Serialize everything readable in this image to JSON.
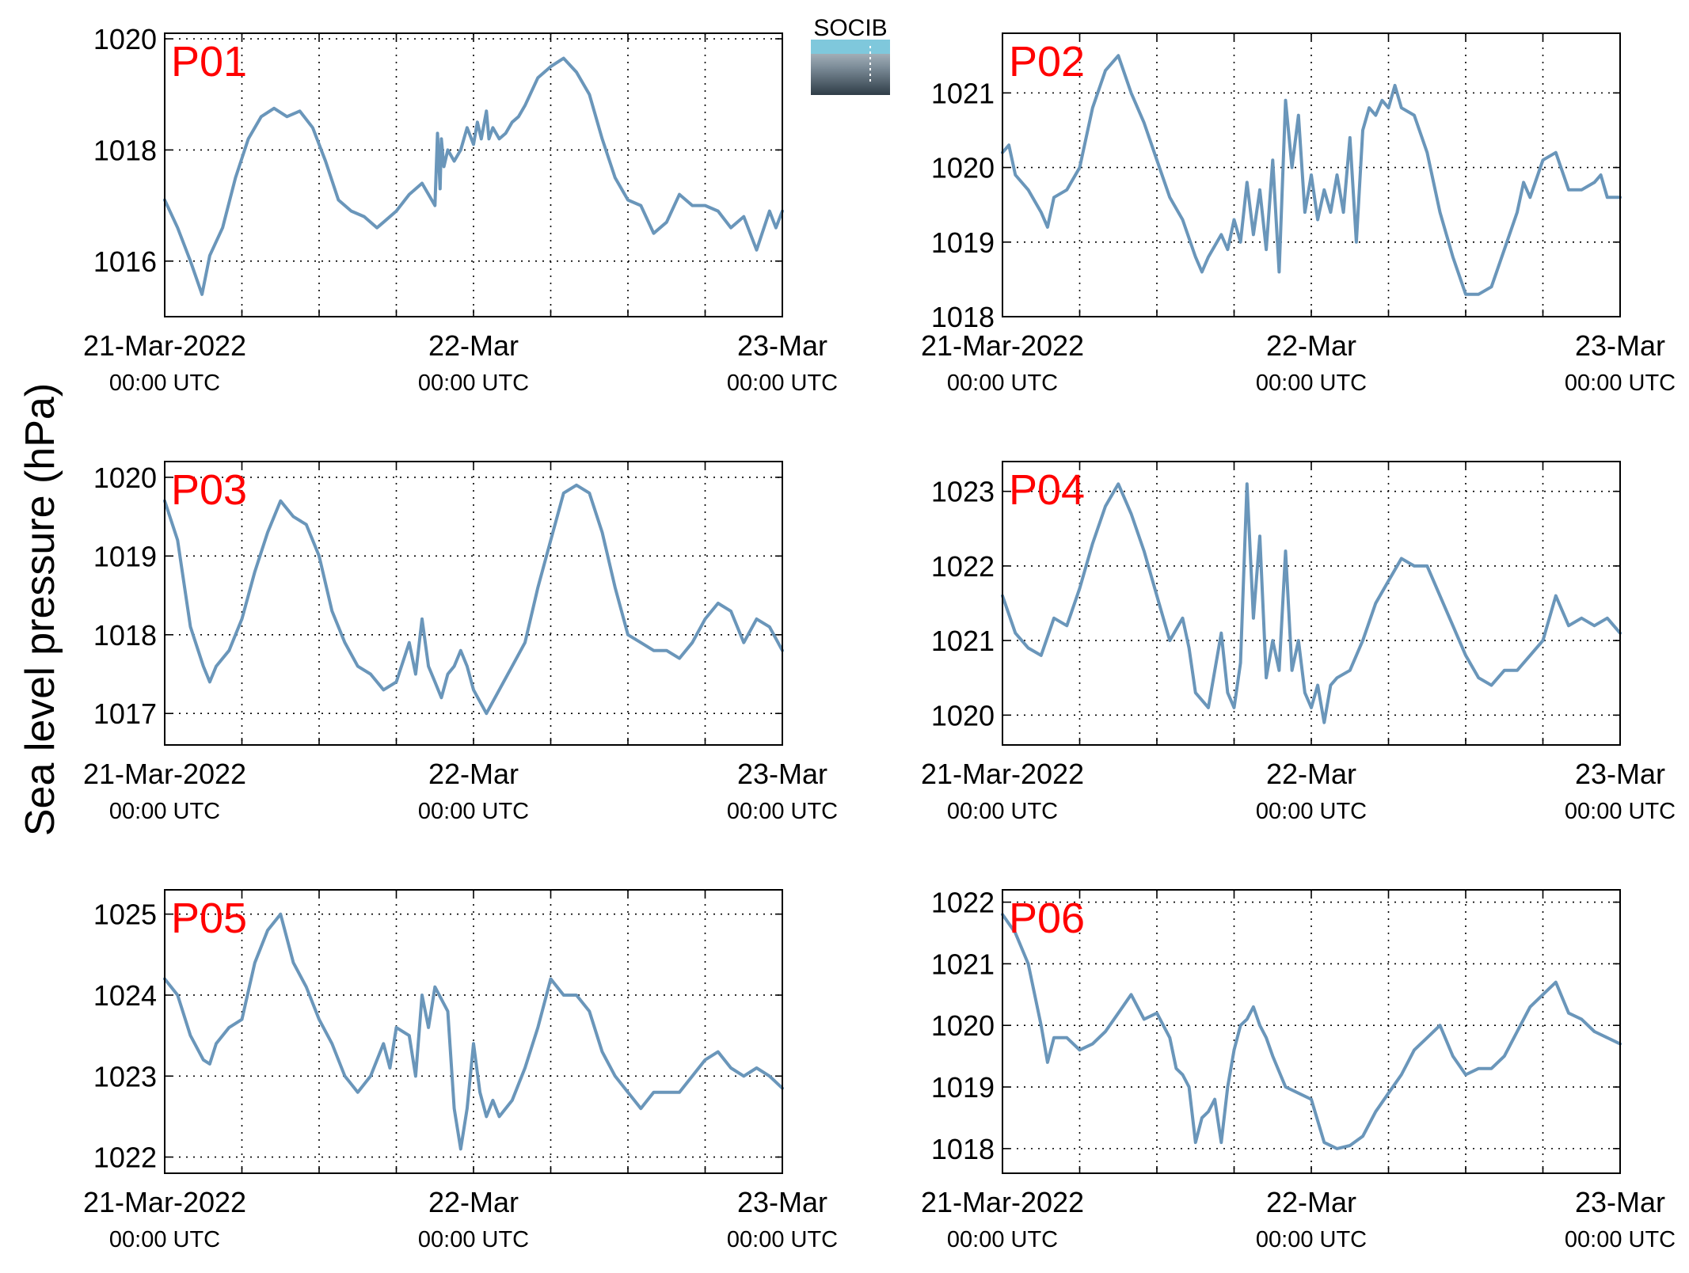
{
  "figure": {
    "ylabel": "Sea level pressure (hPa)",
    "logo_text": "SOCIB",
    "line_color": "#6a96ba",
    "label_color": "#ff0000",
    "x_tick_labels": [
      {
        "date": "21-Mar-2022",
        "time": "00:00 UTC"
      },
      {
        "date": "22-Mar",
        "time": "00:00 UTC"
      },
      {
        "date": "23-Mar",
        "time": "00:00 UTC"
      }
    ]
  },
  "chart_data": [
    {
      "type": "line",
      "label": "P01",
      "xlim": [
        0,
        48
      ],
      "ylim": [
        1015,
        1020.1
      ],
      "yticks": [
        "1016",
        "1018",
        "1020"
      ],
      "grid": true,
      "x_unit": "hours since 21-Mar-2022 00:00 UTC",
      "x": [
        0,
        1,
        2,
        2.9,
        3.5,
        4.5,
        5.5,
        6.5,
        7.5,
        8.5,
        9.5,
        10.5,
        11.5,
        12.5,
        13.5,
        14.5,
        15.5,
        16.5,
        17,
        18,
        19,
        20,
        21,
        21.2,
        21.4,
        21.5,
        21.7,
        22,
        22.5,
        23,
        23.5,
        24,
        24.3,
        24.6,
        25,
        25.2,
        25.5,
        26,
        26.5,
        27,
        27.5,
        28,
        29,
        30,
        31,
        32,
        33,
        34,
        35,
        36,
        37,
        38,
        39,
        40,
        41,
        42,
        43,
        44,
        45,
        46,
        47,
        47.5,
        48
      ],
      "y": [
        1017.1,
        1016.6,
        1016.0,
        1015.4,
        1016.1,
        1016.6,
        1017.5,
        1018.2,
        1018.6,
        1018.75,
        1018.6,
        1018.7,
        1018.4,
        1017.8,
        1017.1,
        1016.9,
        1016.8,
        1016.6,
        1016.7,
        1016.9,
        1017.2,
        1017.4,
        1017.0,
        1018.3,
        1017.3,
        1018.2,
        1017.7,
        1018.0,
        1017.8,
        1018.0,
        1018.4,
        1018.1,
        1018.5,
        1018.2,
        1018.7,
        1018.2,
        1018.4,
        1018.2,
        1018.3,
        1018.5,
        1018.6,
        1018.8,
        1019.3,
        1019.5,
        1019.65,
        1019.4,
        1019.0,
        1018.2,
        1017.5,
        1017.1,
        1017.0,
        1016.5,
        1016.7,
        1017.2,
        1017.0,
        1017.0,
        1016.9,
        1016.6,
        1016.8,
        1016.2,
        1016.9,
        1016.6,
        1016.9
      ]
    },
    {
      "type": "line",
      "label": "P02",
      "xlim": [
        0,
        48
      ],
      "ylim": [
        1018,
        1021.8
      ],
      "yticks": [
        "1018",
        "1019",
        "1020",
        "1021"
      ],
      "grid": true,
      "x_unit": "hours since 21-Mar-2022 00:00 UTC",
      "x": [
        0,
        0.5,
        1,
        2,
        3,
        3.5,
        4,
        5,
        6,
        7,
        8,
        9,
        10,
        11,
        12,
        13,
        14,
        15,
        15.5,
        16,
        17,
        17.5,
        18,
        18.5,
        19,
        19.5,
        20,
        20.5,
        21,
        21.5,
        22,
        22.5,
        23,
        23.5,
        24,
        24.5,
        25,
        25.5,
        26,
        26.5,
        27,
        27.5,
        28,
        28.5,
        29,
        29.5,
        30,
        30.5,
        31,
        32,
        33,
        33.5,
        34,
        35,
        36,
        37,
        38,
        39,
        40,
        40.5,
        41,
        42,
        43,
        44,
        45,
        46,
        46.5,
        47,
        48
      ],
      "y": [
        1020.2,
        1020.3,
        1019.9,
        1019.7,
        1019.4,
        1019.2,
        1019.6,
        1019.7,
        1020.0,
        1020.8,
        1021.3,
        1021.5,
        1021.0,
        1020.6,
        1020.1,
        1019.6,
        1019.3,
        1018.8,
        1018.6,
        1018.8,
        1019.1,
        1018.9,
        1019.3,
        1019.0,
        1019.8,
        1019.1,
        1019.7,
        1018.9,
        1020.1,
        1018.6,
        1020.9,
        1020.0,
        1020.7,
        1019.4,
        1019.9,
        1019.3,
        1019.7,
        1019.4,
        1019.9,
        1019.4,
        1020.4,
        1019.0,
        1020.5,
        1020.8,
        1020.7,
        1020.9,
        1020.8,
        1021.1,
        1020.8,
        1020.7,
        1020.2,
        1019.8,
        1019.4,
        1018.8,
        1018.3,
        1018.3,
        1018.4,
        1018.9,
        1019.4,
        1019.8,
        1019.6,
        1020.1,
        1020.2,
        1019.7,
        1019.7,
        1019.8,
        1019.9,
        1019.6,
        1019.6
      ]
    },
    {
      "type": "line",
      "label": "P03",
      "xlim": [
        0,
        48
      ],
      "ylim": [
        1016.6,
        1020.2
      ],
      "yticks": [
        "1017",
        "1018",
        "1019",
        "1020"
      ],
      "grid": true,
      "x_unit": "hours since 21-Mar-2022 00:00 UTC",
      "x": [
        0,
        1,
        2,
        3,
        3.5,
        4,
        5,
        5.5,
        6,
        7,
        8,
        9,
        10,
        11,
        12,
        13,
        14,
        15,
        16,
        17,
        18,
        19,
        19.5,
        20,
        20.5,
        21,
        21.5,
        22,
        22.5,
        23,
        23.5,
        24,
        25,
        26,
        27,
        28,
        29,
        30,
        31,
        32,
        33,
        34,
        35,
        36,
        37,
        38,
        39,
        40,
        41,
        42,
        43,
        44,
        45,
        46,
        47,
        48
      ],
      "y": [
        1019.7,
        1019.2,
        1018.1,
        1017.6,
        1017.4,
        1017.6,
        1017.8,
        1018.0,
        1018.2,
        1018.8,
        1019.3,
        1019.7,
        1019.5,
        1019.4,
        1019.0,
        1018.3,
        1017.9,
        1017.6,
        1017.5,
        1017.3,
        1017.4,
        1017.9,
        1017.5,
        1018.2,
        1017.6,
        1017.4,
        1017.2,
        1017.5,
        1017.6,
        1017.8,
        1017.6,
        1017.3,
        1017.0,
        1017.3,
        1017.6,
        1017.9,
        1018.6,
        1019.2,
        1019.8,
        1019.9,
        1019.8,
        1019.3,
        1018.6,
        1018.0,
        1017.9,
        1017.8,
        1017.8,
        1017.7,
        1017.9,
        1018.2,
        1018.4,
        1018.3,
        1017.9,
        1018.2,
        1018.1,
        1017.8
      ]
    },
    {
      "type": "line",
      "label": "P04",
      "xlim": [
        0,
        48
      ],
      "ylim": [
        1019.6,
        1023.4
      ],
      "yticks": [
        "1020",
        "1021",
        "1022",
        "1023"
      ],
      "grid": true,
      "x_unit": "hours since 21-Mar-2022 00:00 UTC",
      "x": [
        0,
        1,
        2,
        3,
        4,
        5,
        6,
        7,
        8,
        9,
        10,
        11,
        12,
        13,
        14,
        14.5,
        15,
        16,
        17,
        17.5,
        18,
        18.5,
        19,
        19.5,
        20,
        20.5,
        21,
        21.5,
        22,
        22.5,
        23,
        23.5,
        24,
        24.5,
        25,
        25.5,
        26,
        27,
        28,
        29,
        30,
        31,
        32,
        33,
        34,
        35,
        36,
        37,
        38,
        39,
        40,
        41,
        42,
        43,
        44,
        45,
        46,
        47,
        48
      ],
      "y": [
        1021.6,
        1021.1,
        1020.9,
        1020.8,
        1021.3,
        1021.2,
        1021.7,
        1022.3,
        1022.8,
        1023.1,
        1022.7,
        1022.2,
        1021.6,
        1021.0,
        1021.3,
        1020.9,
        1020.3,
        1020.1,
        1021.1,
        1020.3,
        1020.1,
        1020.7,
        1023.1,
        1021.3,
        1022.4,
        1020.5,
        1021.0,
        1020.6,
        1022.2,
        1020.6,
        1021.0,
        1020.3,
        1020.1,
        1020.4,
        1019.9,
        1020.4,
        1020.5,
        1020.6,
        1021.0,
        1021.5,
        1021.8,
        1022.1,
        1022.0,
        1022.0,
        1021.6,
        1021.2,
        1020.8,
        1020.5,
        1020.4,
        1020.6,
        1020.6,
        1020.8,
        1021.0,
        1021.6,
        1021.2,
        1021.3,
        1021.2,
        1021.3,
        1021.1
      ]
    },
    {
      "type": "line",
      "label": "P05",
      "xlim": [
        0,
        48
      ],
      "ylim": [
        1021.8,
        1025.3
      ],
      "yticks": [
        "1022",
        "1023",
        "1024",
        "1025"
      ],
      "grid": true,
      "x_unit": "hours since 21-Mar-2022 00:00 UTC",
      "x": [
        0,
        1,
        2,
        3,
        3.5,
        4,
        5,
        6,
        7,
        8,
        9,
        10,
        11,
        12,
        13,
        14,
        15,
        16,
        17,
        17.5,
        18,
        19,
        19.5,
        20,
        20.5,
        21,
        22,
        22.5,
        23,
        23.5,
        24,
        24.5,
        25,
        25.5,
        26,
        27,
        28,
        29,
        30,
        31,
        32,
        33,
        34,
        35,
        36,
        37,
        38,
        39,
        40,
        41,
        42,
        43,
        44,
        45,
        46,
        47,
        48
      ],
      "y": [
        1024.2,
        1024.0,
        1023.5,
        1023.2,
        1023.15,
        1023.4,
        1023.6,
        1023.7,
        1024.4,
        1024.8,
        1025.0,
        1024.4,
        1024.1,
        1023.7,
        1023.4,
        1023.0,
        1022.8,
        1023.0,
        1023.4,
        1023.1,
        1023.6,
        1023.5,
        1023.0,
        1024.0,
        1023.6,
        1024.1,
        1023.8,
        1022.6,
        1022.1,
        1022.6,
        1023.4,
        1022.8,
        1022.5,
        1022.7,
        1022.5,
        1022.7,
        1023.1,
        1023.6,
        1024.2,
        1024.0,
        1024.0,
        1023.8,
        1023.3,
        1023.0,
        1022.8,
        1022.6,
        1022.8,
        1022.8,
        1022.8,
        1023.0,
        1023.2,
        1023.3,
        1023.1,
        1023.0,
        1023.1,
        1023.0,
        1022.85
      ]
    },
    {
      "type": "line",
      "label": "P06",
      "xlim": [
        0,
        48
      ],
      "ylim": [
        1017.6,
        1022.2
      ],
      "yticks": [
        "1018",
        "1019",
        "1020",
        "1021",
        "1022"
      ],
      "grid": true,
      "x_unit": "hours since 21-Mar-2022 00:00 UTC",
      "x": [
        0,
        1,
        2,
        3,
        3.5,
        4,
        5,
        6,
        7,
        8,
        9,
        10,
        11,
        12,
        13,
        13.5,
        14,
        14.5,
        15,
        15.5,
        16,
        16.5,
        17,
        17.5,
        18,
        18.5,
        19,
        19.5,
        20,
        20.5,
        21,
        22,
        23,
        24,
        25,
        26,
        27,
        28,
        29,
        30,
        31,
        32,
        33,
        34,
        35,
        36,
        37,
        38,
        39,
        40,
        41,
        42,
        43,
        44,
        45,
        46,
        47,
        48
      ],
      "y": [
        1021.8,
        1021.5,
        1021.0,
        1020.0,
        1019.4,
        1019.8,
        1019.8,
        1019.6,
        1019.7,
        1019.9,
        1020.2,
        1020.5,
        1020.1,
        1020.2,
        1019.8,
        1019.3,
        1019.2,
        1019.0,
        1018.1,
        1018.5,
        1018.6,
        1018.8,
        1018.1,
        1019.0,
        1019.6,
        1020.0,
        1020.1,
        1020.3,
        1020.0,
        1019.8,
        1019.5,
        1019.0,
        1018.9,
        1018.8,
        1018.1,
        1018.0,
        1018.05,
        1018.2,
        1018.6,
        1018.9,
        1019.2,
        1019.6,
        1019.8,
        1020.0,
        1019.5,
        1019.2,
        1019.3,
        1019.3,
        1019.5,
        1019.9,
        1020.3,
        1020.5,
        1020.7,
        1020.2,
        1020.1,
        1019.9,
        1019.8,
        1019.7
      ]
    }
  ]
}
